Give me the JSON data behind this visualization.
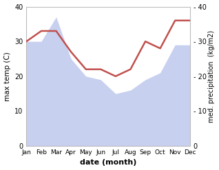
{
  "months": [
    "Jan",
    "Feb",
    "Mar",
    "Apr",
    "May",
    "Jun",
    "Jul",
    "Aug",
    "Sep",
    "Oct",
    "Nov",
    "Dec"
  ],
  "temp": [
    30,
    30,
    37,
    25,
    20,
    19,
    15,
    16,
    19,
    21,
    29,
    29
  ],
  "precip": [
    30,
    33,
    33,
    27,
    22,
    22,
    20,
    22,
    30,
    28,
    36,
    36
  ],
  "temp_fill_color": "#c8d0f0",
  "precip_color": "#c0504d",
  "ylabel_left": "max temp (C)",
  "ylabel_right": "med. precipitation  (kg/m2)",
  "xlabel": "date (month)",
  "yticks": [
    0,
    10,
    20,
    30,
    40
  ],
  "ylim": [
    0,
    40
  ],
  "background_color": "#ffffff"
}
